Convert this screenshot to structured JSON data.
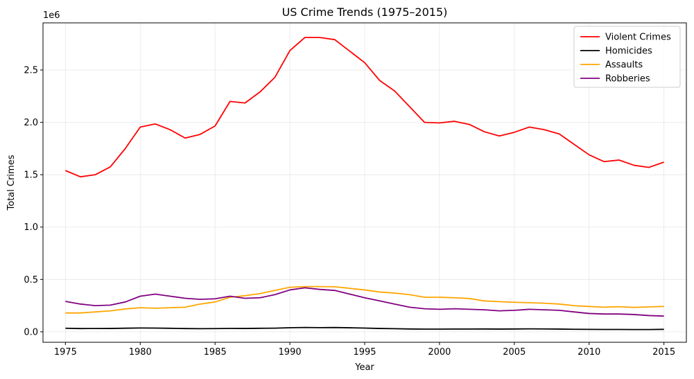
{
  "chart_data": {
    "type": "line",
    "title": "US Crime Trends (1975–2015)",
    "xlabel": "Year",
    "ylabel": "Total Crimes",
    "y_offset_label": "1e6",
    "xlim": [
      1973.5,
      2016.5
    ],
    "ylim": [
      -100000,
      2950000
    ],
    "xticks": [
      1975,
      1980,
      1985,
      1990,
      1995,
      2000,
      2005,
      2010,
      2015
    ],
    "yticks": [
      0,
      500000,
      1000000,
      1500000,
      2000000,
      2500000
    ],
    "ytick_labels": [
      "0.0",
      "0.5",
      "1.0",
      "1.5",
      "2.0",
      "2.5"
    ],
    "grid": true,
    "legend_position": "top-right",
    "x": [
      1975,
      1976,
      1977,
      1978,
      1979,
      1980,
      1981,
      1982,
      1983,
      1984,
      1985,
      1986,
      1987,
      1988,
      1989,
      1990,
      1991,
      1992,
      1993,
      1994,
      1995,
      1996,
      1997,
      1998,
      1999,
      2000,
      2001,
      2002,
      2003,
      2004,
      2005,
      2006,
      2007,
      2008,
      2009,
      2010,
      2011,
      2012,
      2013,
      2014,
      2015
    ],
    "series": [
      {
        "name": "Violent Crimes",
        "color": "#ff0000",
        "values": [
          1540000,
          1480000,
          1500000,
          1575000,
          1750000,
          1955000,
          1985000,
          1930000,
          1850000,
          1885000,
          1965000,
          2200000,
          2185000,
          2290000,
          2430000,
          2685000,
          2810000,
          2810000,
          2790000,
          2680000,
          2570000,
          2400000,
          2300000,
          2150000,
          2000000,
          1995000,
          2010000,
          1980000,
          1910000,
          1870000,
          1905000,
          1955000,
          1930000,
          1890000,
          1790000,
          1690000,
          1625000,
          1640000,
          1590000,
          1570000,
          1620000
        ]
      },
      {
        "name": "Homicides",
        "color": "#000000",
        "values": [
          34000,
          31000,
          31500,
          32000,
          34500,
          36500,
          35500,
          33500,
          31000,
          30000,
          30500,
          32500,
          32000,
          33500,
          35000,
          39000,
          41500,
          40000,
          41000,
          38500,
          35500,
          32000,
          30000,
          27000,
          25500,
          25500,
          26500,
          26500,
          27000,
          26000,
          27000,
          28000,
          27500,
          26000,
          24000,
          23000,
          22500,
          22500,
          21500,
          21500,
          23500
        ]
      },
      {
        "name": "Assaults",
        "color": "#ffa500",
        "values": [
          180000,
          180000,
          190000,
          200000,
          218000,
          230000,
          225000,
          230000,
          235000,
          265000,
          285000,
          330000,
          345000,
          365000,
          395000,
          425000,
          432000,
          432000,
          430000,
          415000,
          400000,
          380000,
          370000,
          355000,
          330000,
          330000,
          325000,
          318000,
          295000,
          288000,
          282000,
          278000,
          273000,
          265000,
          250000,
          242000,
          235000,
          240000,
          233000,
          238000,
          242000
        ]
      },
      {
        "name": "Robberies",
        "color": "#800080",
        "values": [
          290000,
          265000,
          250000,
          255000,
          285000,
          340000,
          360000,
          340000,
          320000,
          310000,
          315000,
          340000,
          320000,
          325000,
          355000,
          400000,
          420000,
          405000,
          395000,
          360000,
          325000,
          295000,
          265000,
          235000,
          220000,
          215000,
          220000,
          215000,
          210000,
          200000,
          205000,
          215000,
          210000,
          205000,
          190000,
          175000,
          170000,
          170000,
          165000,
          155000,
          150000
        ]
      }
    ]
  }
}
